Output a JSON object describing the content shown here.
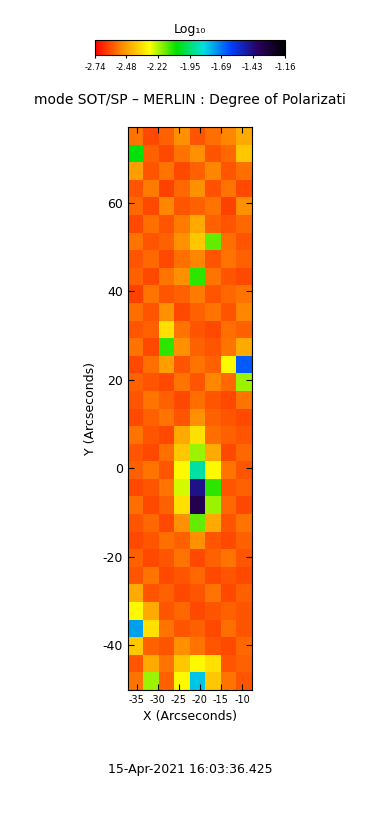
{
  "chart_data": {
    "type": "heatmap",
    "title": "mode SOT/SP – MERLIN : Degree of Polarizati",
    "x_label": "X (Arcseconds)",
    "y_label": "Y (Arcseconds)",
    "annotations": [
      "15-Apr-2021 16:03:36.425"
    ],
    "xlim": [
      -37.1,
      -7.6
    ],
    "ylim": [
      -50.2,
      77.2
    ],
    "xticks": [
      -35,
      -30,
      -25,
      -20,
      -15,
      -10
    ],
    "yticks": [
      -40,
      -20,
      0,
      20,
      40,
      60
    ],
    "colorbar": {
      "label": "Log₁₀",
      "range": [
        -2.74,
        -1.16
      ],
      "ticks": [
        -2.74,
        -2.48,
        -2.22,
        -1.95,
        -1.69,
        -1.43,
        -1.16
      ]
    },
    "cells": [
      [
        -2.55,
        -2.62,
        -2.58,
        -2.5,
        -2.6,
        -2.56,
        -2.52,
        -2.45
      ],
      [
        -2.05,
        -2.58,
        -2.62,
        -2.55,
        -2.5,
        -2.6,
        -2.57,
        -2.4
      ],
      [
        -2.48,
        -2.6,
        -2.55,
        -2.62,
        -2.58,
        -2.52,
        -2.6,
        -2.56
      ],
      [
        -2.6,
        -2.54,
        -2.63,
        -2.57,
        -2.5,
        -2.61,
        -2.55,
        -2.62
      ],
      [
        -2.57,
        -2.62,
        -2.52,
        -2.6,
        -2.58,
        -2.55,
        -2.63,
        -2.5
      ],
      [
        -2.62,
        -2.56,
        -2.6,
        -2.54,
        -2.45,
        -2.58,
        -2.6,
        -2.57
      ],
      [
        -2.55,
        -2.6,
        -2.58,
        -2.5,
        -2.4,
        -2.15,
        -2.56,
        -2.6
      ],
      [
        -2.6,
        -2.57,
        -2.62,
        -2.56,
        -2.52,
        -2.6,
        -2.55,
        -2.58
      ],
      [
        -2.58,
        -2.62,
        -2.55,
        -2.5,
        -2.1,
        -2.55,
        -2.6,
        -2.62
      ],
      [
        -2.63,
        -2.55,
        -2.6,
        -2.58,
        -2.54,
        -2.6,
        -2.57,
        -2.55
      ],
      [
        -2.56,
        -2.6,
        -2.5,
        -2.62,
        -2.58,
        -2.55,
        -2.6,
        -2.52
      ],
      [
        -2.6,
        -2.58,
        -2.35,
        -2.55,
        -2.6,
        -2.62,
        -2.56,
        -2.58
      ],
      [
        -2.55,
        -2.62,
        -2.1,
        -2.5,
        -2.58,
        -2.6,
        -2.55,
        -2.45
      ],
      [
        -2.62,
        -2.56,
        -2.48,
        -2.6,
        -2.55,
        -2.58,
        -2.3,
        -1.65
      ],
      [
        -2.58,
        -2.6,
        -2.62,
        -2.55,
        -2.6,
        -2.52,
        -2.57,
        -2.2
      ],
      [
        -2.6,
        -2.55,
        -2.58,
        -2.62,
        -2.56,
        -2.6,
        -2.62,
        -2.55
      ],
      [
        -2.62,
        -2.58,
        -2.55,
        -2.6,
        -2.5,
        -2.58,
        -2.6,
        -2.62
      ],
      [
        -2.55,
        -2.6,
        -2.62,
        -2.45,
        -2.35,
        -2.56,
        -2.58,
        -2.6
      ],
      [
        -2.6,
        -2.62,
        -2.56,
        -2.4,
        -2.2,
        -2.45,
        -2.62,
        -2.57
      ],
      [
        -2.58,
        -2.55,
        -2.6,
        -2.3,
        -1.9,
        -2.3,
        -2.55,
        -2.6
      ],
      [
        -2.62,
        -2.6,
        -2.55,
        -2.25,
        -1.45,
        -2.1,
        -2.6,
        -2.58
      ],
      [
        -2.56,
        -2.62,
        -2.58,
        -2.35,
        -1.35,
        -2.2,
        -2.57,
        -2.62
      ],
      [
        -2.6,
        -2.57,
        -2.62,
        -2.5,
        -2.15,
        -2.45,
        -2.6,
        -2.55
      ],
      [
        -2.62,
        -2.6,
        -2.56,
        -2.58,
        -2.5,
        -2.6,
        -2.62,
        -2.58
      ],
      [
        -2.58,
        -2.62,
        -2.6,
        -2.55,
        -2.62,
        -2.58,
        -2.55,
        -2.6
      ],
      [
        -2.6,
        -2.55,
        -2.62,
        -2.6,
        -2.57,
        -2.62,
        -2.6,
        -2.62
      ],
      [
        -2.45,
        -2.6,
        -2.58,
        -2.62,
        -2.6,
        -2.55,
        -2.62,
        -2.58
      ],
      [
        -2.3,
        -2.45,
        -2.6,
        -2.57,
        -2.62,
        -2.6,
        -2.58,
        -2.6
      ],
      [
        -1.75,
        -2.35,
        -2.55,
        -2.6,
        -2.58,
        -2.62,
        -2.56,
        -2.6
      ],
      [
        -2.4,
        -2.58,
        -2.6,
        -2.5,
        -2.55,
        -2.6,
        -2.62,
        -2.57
      ],
      [
        -2.6,
        -2.45,
        -2.55,
        -2.4,
        -2.3,
        -2.35,
        -2.6,
        -2.58
      ],
      [
        -2.55,
        -2.2,
        -2.58,
        -2.3,
        -1.8,
        -2.4,
        -2.55,
        -2.6
      ]
    ]
  }
}
